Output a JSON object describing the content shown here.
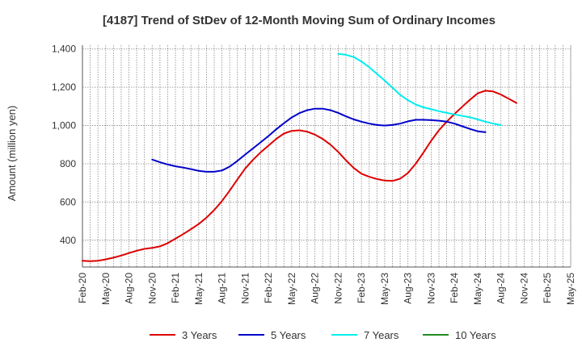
{
  "chart_data": {
    "type": "line",
    "title": "[4187]  Trend of StDev of 12-Month Moving Sum of Ordinary Incomes",
    "xlabel": "",
    "ylabel": "Amount (million yen)",
    "ylim": [
      260,
      1420
    ],
    "y_ticks": [
      400,
      600,
      800,
      1000,
      1200,
      1400
    ],
    "y_tick_labels": [
      "400",
      "600",
      "800",
      "1,000",
      "1,200",
      "1,400"
    ],
    "x_ticks": [
      "Feb-20",
      "May-20",
      "Aug-20",
      "Nov-20",
      "Feb-21",
      "May-21",
      "Aug-21",
      "Nov-21",
      "Feb-22",
      "May-22",
      "Aug-22",
      "Nov-22",
      "Feb-23",
      "May-23",
      "Aug-23",
      "Nov-23",
      "Feb-24",
      "May-24",
      "Aug-24",
      "Nov-24",
      "Feb-25",
      "May-25"
    ],
    "grid": true,
    "legend_position": "bottom",
    "series": [
      {
        "name": "3 Years",
        "color": "#dd0000",
        "points": [
          [
            "Feb-20",
            293
          ],
          [
            "Mar-20",
            291
          ],
          [
            "Apr-20",
            293
          ],
          [
            "May-20",
            300
          ],
          [
            "Jun-20",
            309
          ],
          [
            "Jul-20",
            320
          ],
          [
            "Aug-20",
            333
          ],
          [
            "Sep-20",
            345
          ],
          [
            "Oct-20",
            355
          ],
          [
            "Nov-20",
            360
          ],
          [
            "Dec-20",
            368
          ],
          [
            "Jan-21",
            385
          ],
          [
            "Feb-21",
            408
          ],
          [
            "Mar-21",
            432
          ],
          [
            "Apr-21",
            458
          ],
          [
            "May-21",
            485
          ],
          [
            "Jun-21",
            518
          ],
          [
            "Jul-21",
            558
          ],
          [
            "Aug-21",
            605
          ],
          [
            "Sep-21",
            660
          ],
          [
            "Oct-21",
            718
          ],
          [
            "Nov-21",
            775
          ],
          [
            "Dec-21",
            820
          ],
          [
            "Jan-22",
            860
          ],
          [
            "Feb-22",
            895
          ],
          [
            "Mar-22",
            930
          ],
          [
            "Apr-22",
            958
          ],
          [
            "May-22",
            972
          ],
          [
            "Jun-22",
            975
          ],
          [
            "Jul-22",
            968
          ],
          [
            "Aug-22",
            952
          ],
          [
            "Sep-22",
            930
          ],
          [
            "Oct-22",
            900
          ],
          [
            "Nov-22",
            862
          ],
          [
            "Dec-22",
            818
          ],
          [
            "Jan-23",
            778
          ],
          [
            "Feb-23",
            748
          ],
          [
            "Mar-23",
            732
          ],
          [
            "Apr-23",
            720
          ],
          [
            "May-23",
            712
          ],
          [
            "Jun-23",
            710
          ],
          [
            "Jul-23",
            722
          ],
          [
            "Aug-23",
            752
          ],
          [
            "Sep-23",
            800
          ],
          [
            "Oct-23",
            858
          ],
          [
            "Nov-23",
            920
          ],
          [
            "Dec-23",
            975
          ],
          [
            "Jan-24",
            1020
          ],
          [
            "Feb-24",
            1060
          ],
          [
            "Mar-24",
            1098
          ],
          [
            "Apr-24",
            1135
          ],
          [
            "May-24",
            1168
          ],
          [
            "Jun-24",
            1182
          ],
          [
            "Jul-24",
            1178
          ],
          [
            "Aug-24",
            1162
          ],
          [
            "Sep-24",
            1140
          ],
          [
            "Oct-24",
            1118
          ]
        ]
      },
      {
        "name": "5 Years",
        "color": "#0000cc",
        "points": [
          [
            "Nov-20",
            822
          ],
          [
            "Dec-20",
            808
          ],
          [
            "Jan-21",
            796
          ],
          [
            "Feb-21",
            787
          ],
          [
            "Mar-21",
            780
          ],
          [
            "Apr-21",
            772
          ],
          [
            "May-21",
            763
          ],
          [
            "Jun-21",
            758
          ],
          [
            "Jul-21",
            758
          ],
          [
            "Aug-21",
            765
          ],
          [
            "Sep-21",
            785
          ],
          [
            "Oct-21",
            815
          ],
          [
            "Nov-21",
            848
          ],
          [
            "Dec-21",
            880
          ],
          [
            "Jan-22",
            912
          ],
          [
            "Feb-22",
            945
          ],
          [
            "Mar-22",
            980
          ],
          [
            "Apr-22",
            1012
          ],
          [
            "May-22",
            1042
          ],
          [
            "Jun-22",
            1065
          ],
          [
            "Jul-22",
            1080
          ],
          [
            "Aug-22",
            1088
          ],
          [
            "Sep-22",
            1088
          ],
          [
            "Oct-22",
            1080
          ],
          [
            "Nov-22",
            1066
          ],
          [
            "Dec-22",
            1048
          ],
          [
            "Jan-23",
            1032
          ],
          [
            "Feb-23",
            1020
          ],
          [
            "Mar-23",
            1010
          ],
          [
            "Apr-23",
            1003
          ],
          [
            "May-23",
            1000
          ],
          [
            "Jun-23",
            1003
          ],
          [
            "Jul-23",
            1010
          ],
          [
            "Aug-23",
            1022
          ],
          [
            "Sep-23",
            1030
          ],
          [
            "Oct-23",
            1030
          ],
          [
            "Nov-23",
            1028
          ],
          [
            "Dec-23",
            1025
          ],
          [
            "Jan-24",
            1020
          ],
          [
            "Feb-24",
            1010
          ],
          [
            "Mar-24",
            996
          ],
          [
            "Apr-24",
            982
          ],
          [
            "May-24",
            970
          ],
          [
            "Jun-24",
            965
          ]
        ]
      },
      {
        "name": "7 Years",
        "color": "#00eeee",
        "points": [
          [
            "Nov-22",
            1375
          ],
          [
            "Dec-22",
            1370
          ],
          [
            "Jan-23",
            1358
          ],
          [
            "Feb-23",
            1335
          ],
          [
            "Mar-23",
            1305
          ],
          [
            "Apr-23",
            1270
          ],
          [
            "May-23",
            1235
          ],
          [
            "Jun-23",
            1198
          ],
          [
            "Jul-23",
            1160
          ],
          [
            "Aug-23",
            1132
          ],
          [
            "Sep-23",
            1110
          ],
          [
            "Oct-23",
            1095
          ],
          [
            "Nov-23",
            1085
          ],
          [
            "Dec-23",
            1075
          ],
          [
            "Jan-24",
            1066
          ],
          [
            "Feb-24",
            1058
          ],
          [
            "Mar-24",
            1050
          ],
          [
            "Apr-24",
            1043
          ],
          [
            "May-24",
            1032
          ],
          [
            "Jun-24",
            1020
          ],
          [
            "Jul-24",
            1010
          ],
          [
            "Aug-24",
            1002
          ]
        ]
      },
      {
        "name": "10 Years",
        "color": "#228b22",
        "points": []
      }
    ]
  }
}
